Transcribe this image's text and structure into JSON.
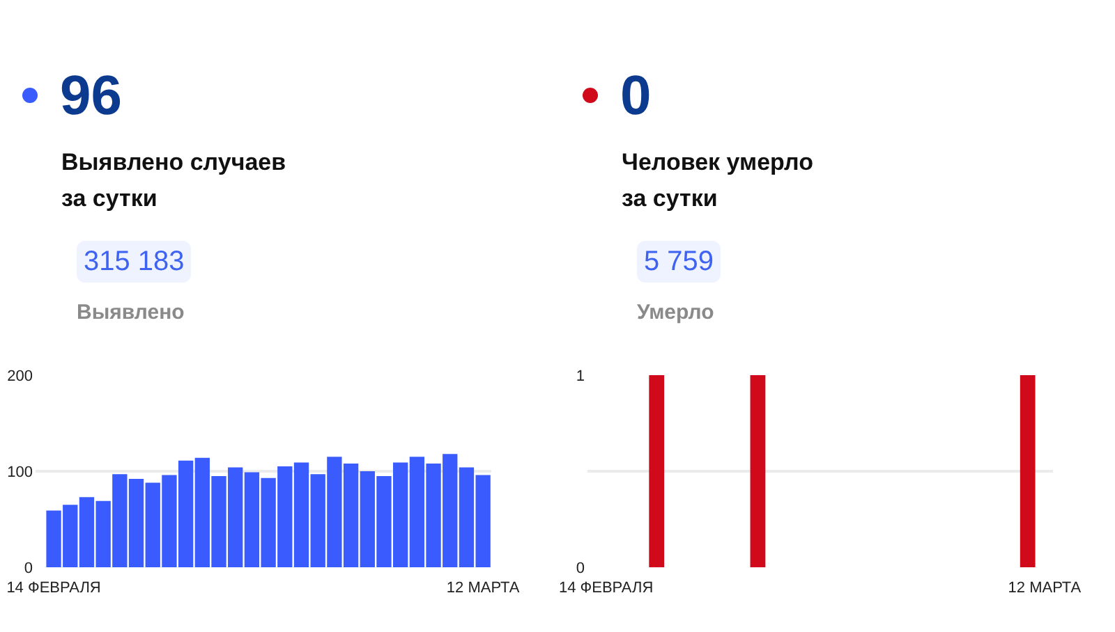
{
  "chart_data": [
    {
      "type": "other",
      "title": "96",
      "subtitle": "Выявлено случаев за сутки",
      "annotations": [
        "315 183",
        "Выявлено"
      ],
      "color": "#3a5cff"
    },
    {
      "type": "other",
      "title": "0",
      "subtitle": "Человек умерло за сутки",
      "annotations": [
        "5 759",
        "Умерло"
      ],
      "color": "#d0091b"
    },
    {
      "type": "bar",
      "categories": [
        "14 ФЕВРАЛЯ",
        null,
        null,
        null,
        null,
        null,
        null,
        null,
        null,
        null,
        null,
        null,
        null,
        null,
        null,
        null,
        null,
        null,
        null,
        null,
        null,
        null,
        null,
        null,
        null,
        null,
        "12 МАРТА"
      ],
      "values": [
        59,
        65,
        73,
        69,
        97,
        92,
        88,
        96,
        111,
        114,
        95,
        104,
        99,
        93,
        105,
        109,
        97,
        115,
        108,
        100,
        95,
        109,
        115,
        108,
        118,
        104,
        96
      ],
      "color": "#3a5cff",
      "ylim": [
        0,
        200
      ],
      "yticks": [
        0,
        100,
        200
      ],
      "grid": "y"
    },
    {
      "type": "bar",
      "categories": [
        "14 ФЕВРАЛЯ",
        null,
        null,
        null,
        null,
        null,
        null,
        null,
        null,
        null,
        null,
        null,
        null,
        null,
        null,
        null,
        null,
        null,
        null,
        null,
        null,
        null,
        null,
        null,
        null,
        null,
        "12 МАРТА"
      ],
      "values": [
        0,
        0,
        0,
        1,
        0,
        0,
        0,
        0,
        0,
        1,
        0,
        0,
        0,
        0,
        0,
        0,
        0,
        0,
        0,
        0,
        0,
        0,
        0,
        0,
        0,
        1,
        0
      ],
      "color": "#d0091b",
      "ylim": [
        0,
        1
      ],
      "yticks": [
        0,
        {
          "value": 0.5,
          "label": null
        },
        1
      ],
      "grid": "y"
    }
  ]
}
